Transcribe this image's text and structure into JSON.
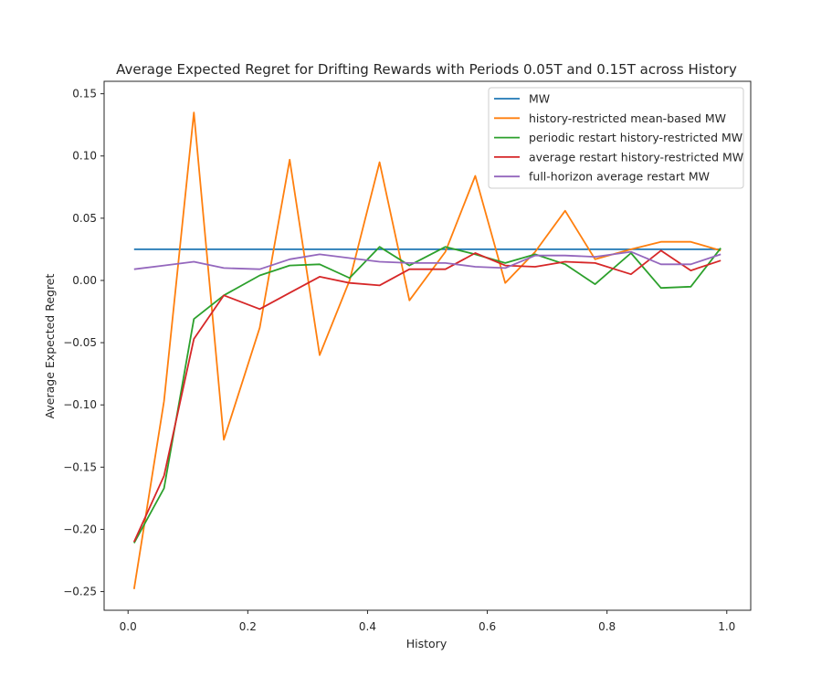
{
  "chart_data": {
    "type": "line",
    "title": "Average Expected Regret for Drifting Rewards with Periods 0.05T and 0.15T across History",
    "xlabel": "History",
    "ylabel": "Average Expected Regret",
    "xlim": [
      -0.04,
      1.04
    ],
    "ylim": [
      -0.265,
      0.16
    ],
    "xticks": [
      0.0,
      0.2,
      0.4,
      0.6,
      0.8,
      1.0
    ],
    "xtick_labels": [
      "0.0",
      "0.2",
      "0.4",
      "0.6",
      "0.8",
      "1.0"
    ],
    "yticks": [
      -0.25,
      -0.2,
      -0.15,
      -0.1,
      -0.05,
      0.0,
      0.05,
      0.1,
      0.15
    ],
    "ytick_labels": [
      "−0.25",
      "−0.20",
      "−0.15",
      "−0.10",
      "−0.05",
      "0.00",
      "0.05",
      "0.10",
      "0.15"
    ],
    "grid": false,
    "legend_position": "top-right",
    "x": [
      0.01,
      0.06,
      0.11,
      0.16,
      0.22,
      0.27,
      0.32,
      0.37,
      0.42,
      0.47,
      0.53,
      0.58,
      0.63,
      0.68,
      0.73,
      0.78,
      0.84,
      0.89,
      0.94,
      0.99
    ],
    "series": [
      {
        "name": "MW",
        "color": "#1f77b4",
        "values": [
          0.025,
          0.025,
          0.025,
          0.025,
          0.025,
          0.025,
          0.025,
          0.025,
          0.025,
          0.025,
          0.025,
          0.025,
          0.025,
          0.025,
          0.025,
          0.025,
          0.025,
          0.025,
          0.025,
          0.025
        ]
      },
      {
        "name": "history-restricted mean-based MW",
        "color": "#ff7f0e",
        "values": [
          -0.248,
          -0.097,
          0.135,
          -0.128,
          -0.038,
          0.097,
          -0.06,
          0.0,
          0.095,
          -0.016,
          0.023,
          0.084,
          -0.002,
          0.023,
          0.056,
          0.017,
          0.025,
          0.031,
          0.031,
          0.024
        ]
      },
      {
        "name": "periodic restart history-restricted MW",
        "color": "#2ca02c",
        "values": [
          -0.211,
          -0.167,
          -0.031,
          -0.012,
          0.004,
          0.012,
          0.013,
          0.002,
          0.027,
          0.012,
          0.027,
          0.021,
          0.014,
          0.021,
          0.013,
          -0.003,
          0.022,
          -0.006,
          -0.005,
          0.026
        ]
      },
      {
        "name": "average restart history-restricted MW",
        "color": "#d62728",
        "values": [
          -0.21,
          -0.157,
          -0.047,
          -0.012,
          -0.023,
          -0.01,
          0.003,
          -0.002,
          -0.004,
          0.009,
          0.009,
          0.022,
          0.012,
          0.011,
          0.015,
          0.014,
          0.005,
          0.024,
          0.008,
          0.016
        ]
      },
      {
        "name": "full-horizon average restart MW",
        "color": "#9467bd",
        "values": [
          0.009,
          0.012,
          0.015,
          0.01,
          0.009,
          0.017,
          0.021,
          0.018,
          0.015,
          0.014,
          0.014,
          0.011,
          0.01,
          0.02,
          0.02,
          0.019,
          0.023,
          0.013,
          0.013,
          0.021
        ]
      }
    ]
  }
}
